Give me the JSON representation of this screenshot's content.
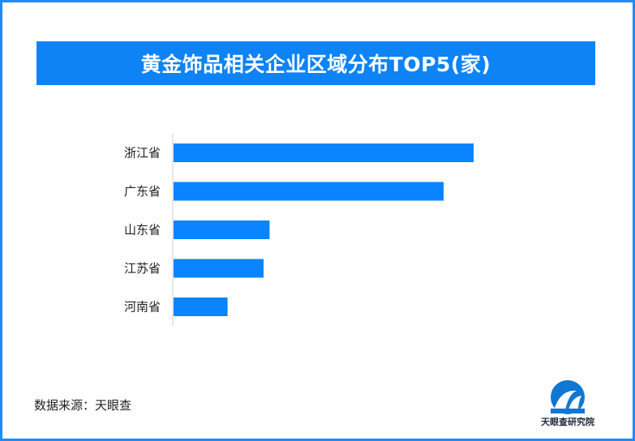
{
  "title": "黄金饰品相关企业区域分布TOP5(家)",
  "source": "数据来源：天眼查",
  "logo_text": "天眼查研究院",
  "colors": {
    "bar": "#0a84ff",
    "title_bg": "#0d83f6",
    "frame": "#1a8cff",
    "axis": "#cfcfcf",
    "logo_blue": "#1276d3"
  },
  "chart_data": {
    "type": "bar",
    "orientation": "horizontal",
    "title": "黄金饰品相关企业区域分布TOP5(家)",
    "categories": [
      "浙江省",
      "广东省",
      "山东省",
      "江苏省",
      "河南省"
    ],
    "values": [
      100,
      90,
      32,
      30,
      18
    ],
    "xlabel": "",
    "ylabel": "",
    "grid": false,
    "legend": "none"
  }
}
